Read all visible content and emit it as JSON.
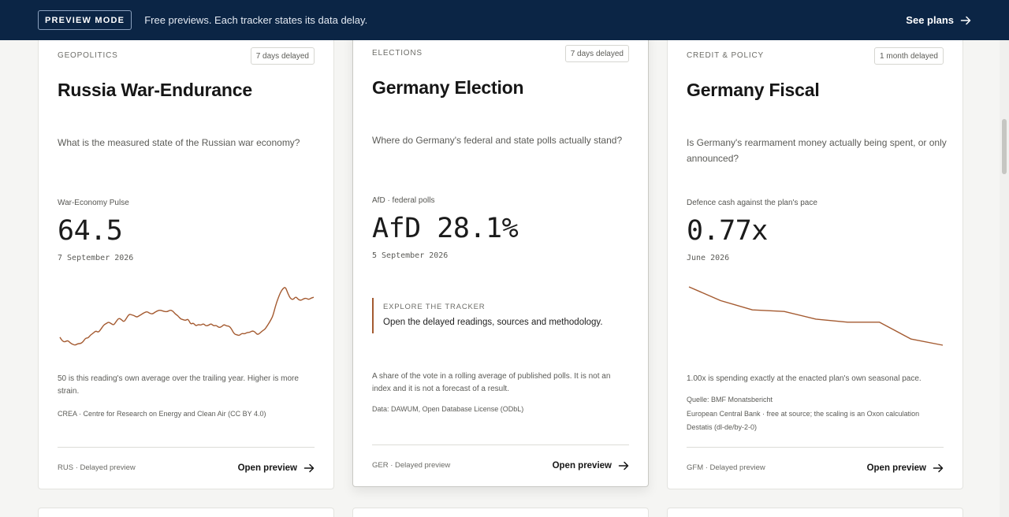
{
  "banner": {
    "badge": "PREVIEW MODE",
    "message": "Free previews. Each tracker states its data delay.",
    "cta": "See plans"
  },
  "cards": [
    {
      "category": "GEOPOLITICS",
      "delay": "7 days delayed",
      "title": "Russia War-Endurance",
      "question": "What is the measured state of the Russian war economy?",
      "metric_label": "War-Economy Pulse",
      "metric_value": "64.5",
      "metric_date": "7 September 2026",
      "note": "50 is this reading's own average over the trailing year. Higher is more strain.",
      "sources": [
        "CREA · Centre for Research on Energy and Clean Air (CC BY 4.0)"
      ],
      "footer_tag": "RUS · Delayed preview",
      "open_label": "Open preview"
    },
    {
      "category": "ELECTIONS",
      "delay": "7 days delayed",
      "title": "Germany Election",
      "question": "Where do Germany's federal and state polls actually stand?",
      "metric_label": "AfD · federal polls",
      "metric_value": "AfD 28.1%",
      "metric_date": "5 September 2026",
      "explore_label": "EXPLORE THE TRACKER",
      "explore_text": "Open the delayed readings, sources and methodology.",
      "note": "A share of the vote in a rolling average of published polls. It is not an index and it is not a forecast of a result.",
      "sources": [
        "Data: DAWUM, Open Database License (ODbL)"
      ],
      "footer_tag": "GER · Delayed preview",
      "open_label": "Open preview"
    },
    {
      "category": "CREDIT & POLICY",
      "delay": "1 month delayed",
      "title": "Germany Fiscal",
      "question": "Is Germany's rearmament money actually being spent, or only announced?",
      "metric_label": "Defence cash against the plan's pace",
      "metric_value": "0.77x",
      "metric_date": "June 2026",
      "note": "1.00x is spending exactly at the enacted plan's own seasonal pace.",
      "sources": [
        "Quelle: BMF Monatsbericht",
        "European Central Bank · free at source; the scaling is an Oxon calculation",
        "Destatis (dl-de/by-2-0)"
      ],
      "footer_tag": "GFM · Delayed preview",
      "open_label": "Open preview"
    }
  ],
  "sparklines": {
    "color": "#a45a30",
    "russia": [
      37,
      32,
      31,
      33,
      30,
      28,
      27,
      29,
      29,
      31,
      36,
      36,
      40,
      42,
      45,
      43,
      47,
      52,
      54,
      56,
      54,
      52,
      57,
      61,
      59,
      56,
      61,
      66,
      65,
      64,
      62,
      64,
      66,
      68,
      69,
      67,
      66,
      68,
      70,
      71,
      70,
      69,
      69,
      71,
      70,
      66,
      64,
      60,
      59,
      58,
      60,
      53,
      55,
      51,
      53,
      52,
      54,
      51,
      52,
      54,
      51,
      52,
      49,
      50,
      53,
      51,
      51,
      47,
      41,
      40,
      39,
      42,
      41,
      43,
      43,
      45,
      44,
      40,
      42,
      45,
      47,
      52,
      57,
      63,
      75,
      85,
      93,
      98,
      100,
      91,
      85,
      84,
      88,
      84,
      83,
      85,
      86,
      84,
      86,
      87
    ],
    "fiscal": [
      1.15,
      1.06,
      1.0,
      0.99,
      0.94,
      0.92,
      0.92,
      0.81,
      0.77
    ]
  }
}
